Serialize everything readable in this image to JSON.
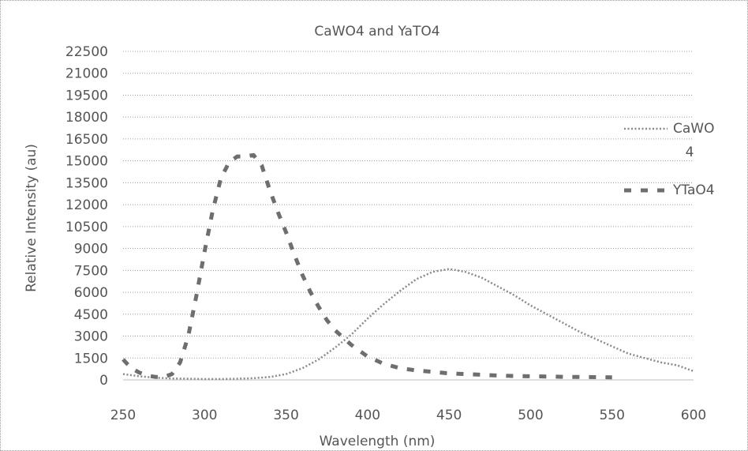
{
  "chart_data": {
    "type": "line",
    "title": "CaWO4 and YaTO4",
    "xlabel": "Wavelength (nm)",
    "ylabel": "Relative Intensity (au)",
    "xlim": [
      250,
      600
    ],
    "ylim": [
      0,
      22500
    ],
    "x_ticks": [
      "250",
      "300",
      "350",
      "400",
      "450",
      "500",
      "550",
      "600"
    ],
    "y_ticks": [
      "0",
      "1500",
      "3000",
      "4500",
      "6000",
      "7500",
      "9000",
      "10500",
      "12000",
      "13500",
      "15000",
      "16500",
      "18000",
      "19500",
      "21000",
      "22500"
    ],
    "grid": true,
    "legend_position": "right",
    "series": [
      {
        "name": "CaWO4",
        "legend_label_lines": [
          "CaWO",
          "4"
        ],
        "style": "dotted",
        "color": "#8a8a8a",
        "x": [
          250,
          260,
          270,
          280,
          290,
          300,
          310,
          320,
          330,
          340,
          350,
          360,
          370,
          380,
          390,
          400,
          410,
          420,
          430,
          440,
          450,
          460,
          470,
          480,
          490,
          500,
          510,
          520,
          530,
          540,
          550,
          560,
          570,
          580,
          590,
          600
        ],
        "y": [
          400,
          250,
          150,
          100,
          80,
          60,
          60,
          80,
          120,
          200,
          400,
          800,
          1400,
          2200,
          3100,
          4200,
          5200,
          6100,
          6900,
          7400,
          7600,
          7400,
          7000,
          6400,
          5800,
          5100,
          4500,
          3900,
          3300,
          2800,
          2300,
          1800,
          1500,
          1200,
          1000,
          600
        ]
      },
      {
        "name": "YTaO4",
        "legend_label_lines": [
          "YTaO4"
        ],
        "style": "dashed",
        "color": "#6e6e6e",
        "x": [
          250,
          255,
          260,
          265,
          270,
          275,
          280,
          285,
          290,
          295,
          300,
          305,
          310,
          315,
          320,
          325,
          330,
          335,
          340,
          345,
          350,
          355,
          360,
          365,
          370,
          375,
          380,
          385,
          390,
          395,
          400,
          410,
          420,
          430,
          440,
          450,
          460,
          470,
          480,
          490,
          500,
          510,
          520,
          530,
          540,
          550
        ],
        "y": [
          1400,
          800,
          500,
          300,
          200,
          200,
          400,
          1200,
          3000,
          5800,
          8800,
          11600,
          13800,
          14900,
          15300,
          15300,
          15400,
          14700,
          13000,
          11500,
          10100,
          8600,
          7200,
          6000,
          5000,
          4100,
          3400,
          2900,
          2400,
          2000,
          1600,
          1100,
          800,
          650,
          550,
          450,
          400,
          350,
          300,
          270,
          250,
          230,
          210,
          200,
          190,
          180
        ]
      }
    ]
  }
}
